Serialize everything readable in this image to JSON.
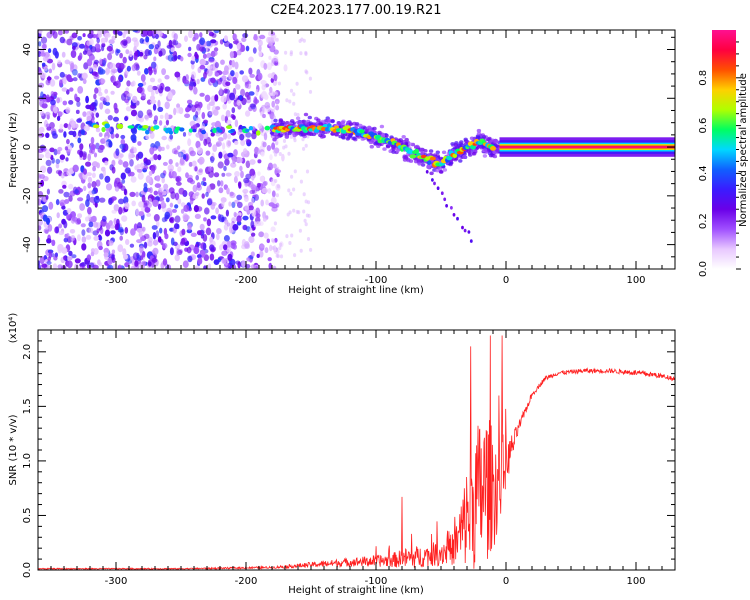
{
  "title": "C2E4.2023.177.00.19.R21",
  "chart_data": [
    {
      "type": "heatmap",
      "xlabel": "Height of straight line (km)",
      "ylabel": "Frequency (Hz)",
      "xlim": [
        -360,
        130
      ],
      "ylim": [
        -50,
        48
      ],
      "xticks": [
        -300,
        -200,
        -100,
        0,
        100
      ],
      "yticks": [
        -40,
        -20,
        0,
        20,
        40
      ],
      "colorbar": {
        "label": "Normalized spectral amplitude",
        "range": [
          0.0,
          1.0
        ],
        "ticks": [
          0.0,
          0.2,
          0.4,
          0.6,
          0.8
        ],
        "colors": [
          "#ffffff",
          "#e8c8ff",
          "#a050ff",
          "#6a00e8",
          "#3a1cff",
          "#1060ff",
          "#00d8ff",
          "#00ff60",
          "#b0ff00",
          "#ffd000",
          "#ff5000",
          "#ff0040",
          "#ff1090"
        ]
      },
      "ridge": {
        "x": [
          -320,
          -290,
          -260,
          -230,
          -200,
          -180,
          -160,
          -140,
          -120,
          -100,
          -80,
          -60,
          -50,
          -40,
          -30,
          -20,
          -10,
          0,
          50,
          100,
          130
        ],
        "y": [
          9,
          8,
          7,
          7,
          7,
          7,
          8,
          8,
          7,
          4,
          0,
          -5,
          -7,
          -3,
          0,
          2,
          0,
          0,
          0,
          0,
          0
        ]
      }
    },
    {
      "type": "line",
      "xlabel": "Height of straight line (km)",
      "ylabel": "SNR (10 * v/v)",
      "multiplier": "(x10⁴)",
      "xlim": [
        -360,
        130
      ],
      "ylim": [
        0,
        2.2
      ],
      "xticks": [
        -300,
        -200,
        -100,
        0,
        100
      ],
      "yticks": [
        0.0,
        0.5,
        1.0,
        1.5,
        2.0
      ],
      "ytick_labels": [
        "0.0",
        "0.5",
        "1.0",
        "1.5",
        "2.0"
      ],
      "color": "#ff2020",
      "envelope": {
        "x": [
          -360,
          -250,
          -180,
          -150,
          -120,
          -90,
          -75,
          -60,
          -40,
          -32,
          -28,
          -20,
          -15,
          -8,
          0,
          10,
          20,
          30,
          40,
          60,
          80,
          100,
          115,
          130
        ],
        "base": [
          0.01,
          0.01,
          0.02,
          0.04,
          0.06,
          0.07,
          0.08,
          0.1,
          0.15,
          0.3,
          0.4,
          0.5,
          0.55,
          0.6,
          0.9,
          1.3,
          1.6,
          1.75,
          1.8,
          1.82,
          1.82,
          1.8,
          1.78,
          1.75
        ],
        "spread": [
          0.01,
          0.01,
          0.02,
          0.05,
          0.08,
          0.12,
          0.2,
          0.2,
          0.3,
          0.8,
          1.2,
          1.4,
          1.4,
          1.0,
          0.4,
          0.1,
          0.05,
          0.04,
          0.04,
          0.04,
          0.04,
          0.05,
          0.05,
          0.04
        ]
      },
      "spikes": [
        {
          "x": -80,
          "y": 0.67
        },
        {
          "x": -27,
          "y": 2.05
        },
        {
          "x": -12,
          "y": 2.15
        },
        {
          "x": -3,
          "y": 2.15
        }
      ]
    }
  ]
}
